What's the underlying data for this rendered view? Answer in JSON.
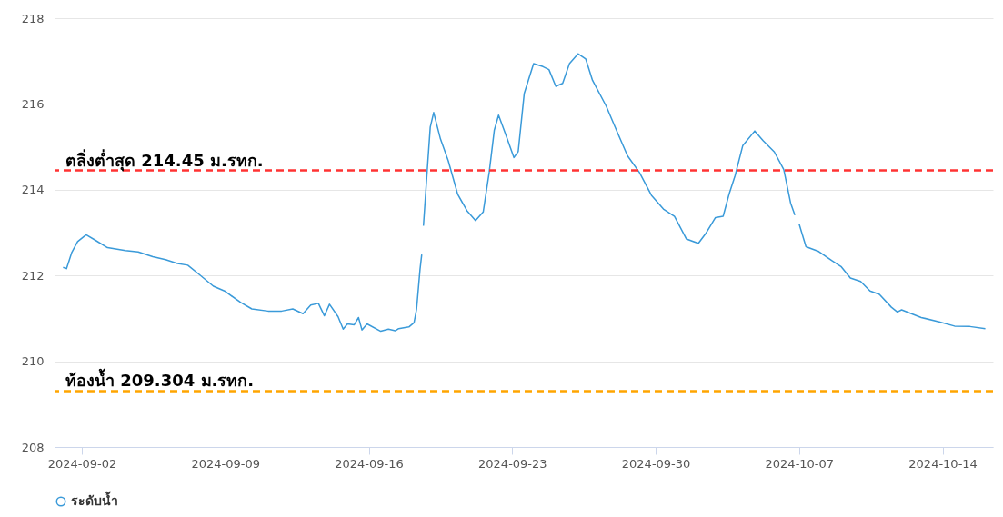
{
  "chart_data": {
    "type": "line",
    "x": [
      "2024-09-01T02:00",
      "2024-09-01T06:00",
      "2024-09-01T12:00",
      "2024-09-01T19:00",
      "2024-09-02T05:00",
      "2024-09-02T16:00",
      "2024-09-03T06:00",
      "2024-09-04T03:00",
      "2024-09-04T18:00",
      "2024-09-05T11:00",
      "2024-09-06T02:00",
      "2024-09-06T16:00",
      "2024-09-07T04:00",
      "2024-09-07T17:00",
      "2024-09-08T10:00",
      "2024-09-08T23:00",
      "2024-09-09T18:00",
      "2024-09-10T07:00",
      "2024-09-11T02:00",
      "2024-09-11T18:00",
      "2024-09-12T07:00",
      "2024-09-12T19:00",
      "2024-09-13T04:00",
      "2024-09-13T13:00",
      "2024-09-13T20:00",
      "2024-09-14T02:00",
      "2024-09-14T12:00",
      "2024-09-14T18:00",
      "2024-09-14T23:00",
      "2024-09-15T07:00",
      "2024-09-15T12:00",
      "2024-09-15T16:00",
      "2024-09-15T22:00",
      "2024-09-16T14:00",
      "2024-09-16T23:00",
      "2024-09-17T07:00",
      "2024-09-17T11:00",
      "2024-09-17T23:00",
      "2024-09-18T05:00",
      "2024-09-18T08:00",
      "2024-09-18T12:00",
      "2024-09-18T14:00",
      "2024-09-18T15:00",
      "2024-09-18T16:00",
      "2024-09-18T21:00",
      "2024-09-19T00:00",
      "2024-09-19T04:00",
      "2024-09-19T12:00",
      "2024-09-19T21:00",
      "2024-09-20T08:00",
      "2024-09-20T19:00",
      "2024-09-21T05:00",
      "2024-09-21T14:00",
      "2024-09-21T21:00",
      "2024-09-22T03:00",
      "2024-09-22T08:00",
      "2024-09-22T17:00",
      "2024-09-23T02:00",
      "2024-09-23T07:00",
      "2024-09-23T14:00",
      "2024-09-24T01:00",
      "2024-09-24T12:00",
      "2024-09-24T19:00",
      "2024-09-25T03:00",
      "2024-09-25T11:00",
      "2024-09-25T19:00",
      "2024-09-26T05:00",
      "2024-09-26T14:00",
      "2024-09-26T22:00",
      "2024-09-27T14:00",
      "2024-09-28T02:00",
      "2024-09-28T15:00",
      "2024-09-29T05:00",
      "2024-09-29T19:00",
      "2024-09-30T09:00",
      "2024-09-30T22:00",
      "2024-10-01T12:00",
      "2024-10-02T02:00",
      "2024-10-02T11:00",
      "2024-10-02T22:00",
      "2024-10-03T07:00",
      "2024-10-03T14:00",
      "2024-10-03T21:00",
      "2024-10-04T06:00",
      "2024-10-04T20:00",
      "2024-10-05T06:00",
      "2024-10-05T19:00",
      "2024-10-06T06:00",
      "2024-10-06T14:00",
      "2024-10-06T19:00",
      "2024-10-06T21:00",
      "2024-10-07T00:00",
      "2024-10-07T08:00",
      "2024-10-07T23:00",
      "2024-10-08T14:00",
      "2024-10-09T01:00",
      "2024-10-09T12:00",
      "2024-10-10T00:00",
      "2024-10-10T11:00",
      "2024-10-10T22:00",
      "2024-10-11T12:00",
      "2024-10-11T19:00",
      "2024-10-12T00:00",
      "2024-10-12T23:00",
      "2024-10-13T20:00",
      "2024-10-14T14:00",
      "2024-10-15T08:00",
      "2024-10-16T02:00"
    ],
    "series": [
      {
        "name": "ระดับน้ำ",
        "color": "#3a9ad9",
        "values": [
          212.19,
          212.16,
          212.53,
          212.79,
          212.95,
          212.82,
          212.65,
          212.58,
          212.55,
          212.44,
          212.37,
          212.28,
          212.24,
          212.03,
          211.75,
          211.64,
          211.37,
          211.22,
          211.17,
          211.17,
          211.22,
          211.11,
          211.31,
          211.35,
          211.06,
          211.33,
          211.04,
          210.75,
          210.87,
          210.85,
          211.02,
          210.73,
          210.87,
          210.7,
          210.75,
          210.71,
          210.76,
          210.8,
          210.9,
          211.22,
          212.14,
          212.49,
          null,
          213.16,
          214.61,
          215.46,
          215.8,
          215.18,
          214.68,
          213.9,
          213.51,
          213.28,
          213.48,
          214.4,
          215.39,
          215.74,
          215.25,
          214.75,
          214.89,
          216.24,
          216.94,
          216.87,
          216.8,
          216.41,
          216.48,
          216.94,
          217.17,
          217.05,
          216.55,
          215.95,
          215.39,
          214.79,
          214.4,
          213.87,
          213.55,
          213.38,
          212.85,
          212.75,
          212.99,
          213.35,
          213.38,
          213.9,
          214.33,
          215.03,
          215.37,
          215.14,
          214.88,
          214.47,
          213.69,
          213.41,
          null,
          213.2,
          212.67,
          212.56,
          212.35,
          212.21,
          211.94,
          211.86,
          211.64,
          211.56,
          211.26,
          211.15,
          211.2,
          211.02,
          210.92,
          210.82,
          210.81,
          210.76
        ]
      }
    ],
    "xlim": [
      "2024-08-31T16:00",
      "2024-10-16T11:00"
    ],
    "xticks": [
      "2024-09-02",
      "2024-09-09",
      "2024-09-16",
      "2024-09-23",
      "2024-09-30",
      "2024-10-07",
      "2024-10-14"
    ],
    "ylim": [
      208,
      218
    ],
    "yticks": [
      208,
      210,
      212,
      214,
      216,
      218
    ],
    "ref_lines": [
      {
        "axis": "y",
        "value": 214.45,
        "label": "ตลิ่งต่ำสุด 214.45 ม.รทก.",
        "color": "#ff3333",
        "line_style": "dashed"
      },
      {
        "axis": "y",
        "value": 209.304,
        "label": "ท้องน้ำ 209.304 ม.รทก.",
        "color": "#ffa500",
        "line_style": "dashed"
      }
    ],
    "grid": "y",
    "legend": "bottom"
  }
}
